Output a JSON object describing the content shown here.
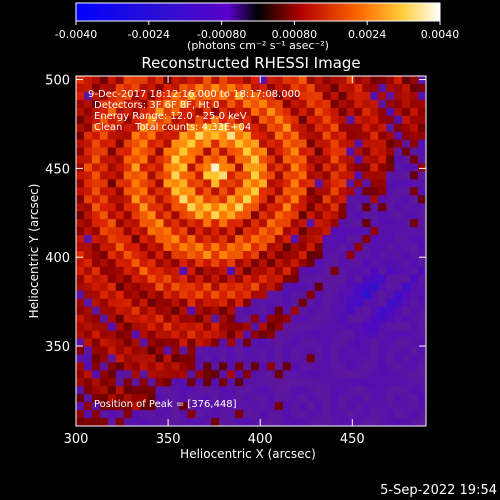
{
  "chart_data": {
    "type": "heatmap",
    "title": "Reconstructed RHESSI Image",
    "xlabel": "Heliocentric X (arcsec)",
    "ylabel": "Heliocentric Y (arcsec)",
    "xlim": [
      300,
      490
    ],
    "ylim": [
      305,
      502
    ],
    "x_ticks": [
      "300",
      "350",
      "400",
      "450"
    ],
    "x_tick_values": [
      300,
      350,
      400,
      450
    ],
    "y_ticks": [
      "350",
      "400",
      "450",
      "500"
    ],
    "y_tick_values": [
      350,
      400,
      450,
      500
    ],
    "colorbar": {
      "ticks": [
        "-0.0040",
        "-0.0024",
        "-0.00080",
        "0.00080",
        "0.0024",
        "0.0040"
      ],
      "tick_values": [
        -0.004,
        -0.0024,
        -0.0008,
        0.0008,
        0.0024,
        0.004
      ],
      "range": [
        -0.004,
        0.004
      ],
      "unit_label": "(photons cm⁻² s⁻¹ asec⁻²)"
    },
    "annotations": [
      "9-Dec-2017 18:12:16.000 to 18:17:08.000",
      "Detectors: 3F 6F 8F, Ht 0",
      "Energy Range: 12.0 - 25.0 keV",
      "Clean    Total counts: 4.33E+04"
    ],
    "peak_label": "Position of Peak = [376,448]",
    "peak": [
      376,
      448
    ],
    "footer_date": "5-Sep-2022 19:54",
    "colors": {
      "background": "#000000",
      "text": "#ffffff"
    }
  }
}
